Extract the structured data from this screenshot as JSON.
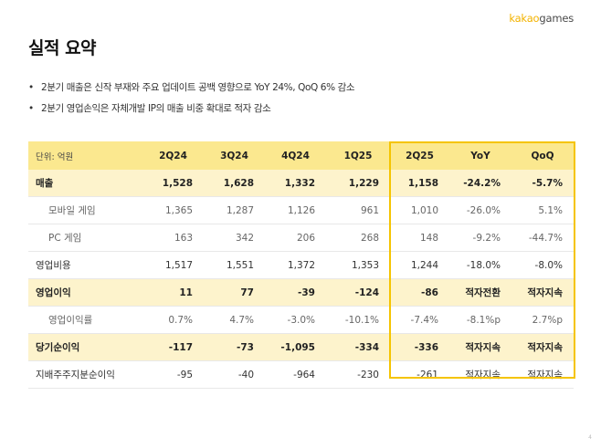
{
  "logo": {
    "brand": "kakao",
    "product": "games"
  },
  "title": "실적 요약",
  "bullets": [
    "2분기 매출은 신작 부재와 주요 업데이트 공백 영향으로 YoY 24%, QoQ 6% 감소",
    "2분기 영업손익은 자체개발 IP의 매출 비중 확대로 적자 감소"
  ],
  "table": {
    "unit_label": "단위: 억원",
    "columns": [
      "2Q24",
      "3Q24",
      "4Q24",
      "1Q25",
      "2Q25",
      "YoY",
      "QoQ"
    ],
    "rows": [
      {
        "label": "매출",
        "values": [
          "1,528",
          "1,628",
          "1,332",
          "1,229",
          "1,158",
          "-24.2%",
          "-5.7%"
        ]
      },
      {
        "label": "모바일 게임",
        "values": [
          "1,365",
          "1,287",
          "1,126",
          "961",
          "1,010",
          "-26.0%",
          "5.1%"
        ]
      },
      {
        "label": "PC 게임",
        "values": [
          "163",
          "342",
          "206",
          "268",
          "148",
          "-9.2%",
          "-44.7%"
        ]
      },
      {
        "label": "영업비용",
        "values": [
          "1,517",
          "1,551",
          "1,372",
          "1,353",
          "1,244",
          "-18.0%",
          "-8.0%"
        ]
      },
      {
        "label": "영업이익",
        "values": [
          "11",
          "77",
          "-39",
          "-124",
          "-86",
          "적자전환",
          "적자지속"
        ]
      },
      {
        "label": "영업이익률",
        "values": [
          "0.7%",
          "4.7%",
          "-3.0%",
          "-10.1%",
          "-7.4%",
          "-8.1%p",
          "2.7%p"
        ]
      },
      {
        "label": "당기순이익",
        "values": [
          "-117",
          "-73",
          "-1,095",
          "-334",
          "-336",
          "적자지속",
          "적자지속"
        ]
      },
      {
        "label": "지배주주지분순이익",
        "values": [
          "-95",
          "-40",
          "-964",
          "-230",
          "-261",
          "적자지속",
          "적자지속"
        ]
      }
    ]
  },
  "colors": {
    "accent": "#f5c400",
    "header_bg": "#fbe88f",
    "row_highlight": "#fdf3cc"
  },
  "page_number": "4"
}
